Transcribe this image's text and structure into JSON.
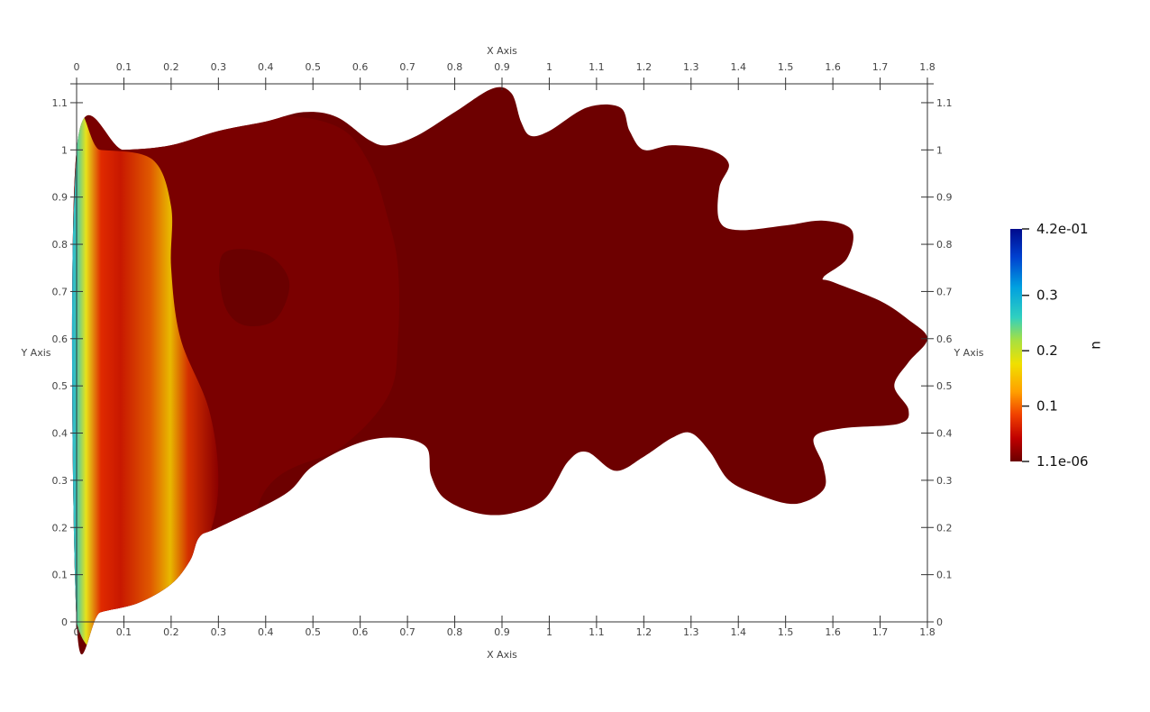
{
  "chart_data": {
    "type": "heatmap",
    "title": "",
    "xlabel": "X Axis",
    "ylabel": "Y Axis",
    "xlim": [
      0,
      1.8
    ],
    "ylim": [
      0,
      1.1
    ],
    "x_ticks": [
      "0",
      "0.1",
      "0.2",
      "0.3",
      "0.4",
      "0.5",
      "0.6",
      "0.7",
      "0.8",
      "0.9",
      "1",
      "1.1",
      "1.2",
      "1.3",
      "1.4",
      "1.5",
      "1.6",
      "1.7",
      "1.8"
    ],
    "y_ticks": [
      "0",
      "0.1",
      "0.2",
      "0.3",
      "0.4",
      "0.5",
      "0.6",
      "0.7",
      "0.8",
      "0.9",
      "1",
      "1.1"
    ],
    "grid": false,
    "colorbar": {
      "title": "u",
      "labels": [
        "4.2e-01",
        "0.3",
        "0.2",
        "0.1",
        "1.1e-06"
      ],
      "min": 1.1e-06,
      "max": 0.42,
      "colormap": [
        "#6b0000",
        "#b40000",
        "#e62a00",
        "#ff7f00",
        "#ffd400",
        "#d4f000",
        "#3fd6a0",
        "#00bcd4",
        "#0050d0",
        "#000a8c"
      ]
    },
    "domain_color": "#6d0000"
  }
}
